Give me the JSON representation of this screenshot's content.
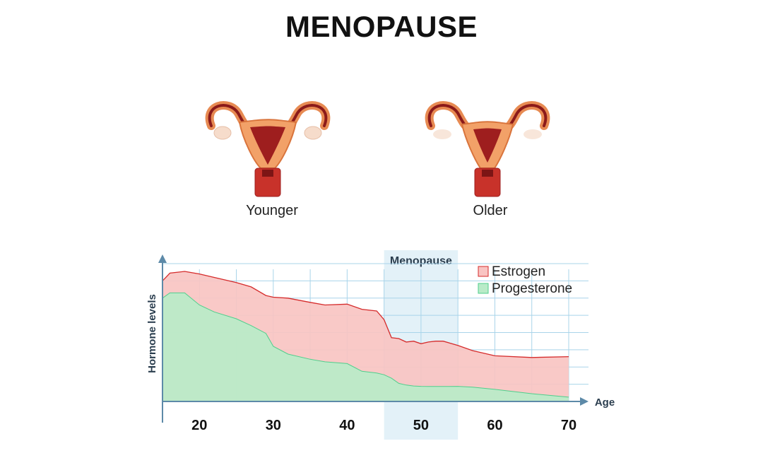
{
  "title": "MENOPAUSE",
  "illustrations": {
    "younger_label": "Younger",
    "older_label": "Older"
  },
  "colors": {
    "estrogen_fill": "#f9c4c2",
    "estrogen_line": "#d52b2b",
    "progesterone_fill": "#b9ebc8",
    "progesterone_line": "#4fcf8c",
    "grid": "#a9d4ea",
    "axis": "#5d8aa8",
    "menopause_band": "#e3f1f8"
  },
  "chart_data": {
    "type": "area",
    "xlabel": "Age",
    "ylabel": "Hormone levels",
    "x_ticks": [
      20,
      30,
      40,
      50,
      60,
      70
    ],
    "xlim": [
      15,
      72
    ],
    "ylim": [
      0,
      8
    ],
    "grid": true,
    "legend_position": "top-right",
    "menopause_band": {
      "label": "Menopause",
      "from": 45,
      "to": 55
    },
    "series": [
      {
        "name": "Estrogen",
        "x": [
          15,
          16,
          18,
          20,
          22,
          25,
          27,
          29,
          30,
          32,
          35,
          37,
          40,
          42,
          44,
          45,
          46,
          47,
          48,
          49,
          50,
          51,
          52,
          53,
          55,
          57,
          60,
          65,
          70
        ],
        "y": [
          7.0,
          7.45,
          7.55,
          7.4,
          7.2,
          6.9,
          6.65,
          6.15,
          6.05,
          6.0,
          5.75,
          5.6,
          5.65,
          5.35,
          5.25,
          4.75,
          3.7,
          3.65,
          3.45,
          3.5,
          3.35,
          3.45,
          3.5,
          3.5,
          3.25,
          2.95,
          2.65,
          2.55,
          2.6
        ]
      },
      {
        "name": "Progesterone",
        "x": [
          15,
          16,
          18,
          20,
          22,
          25,
          27,
          29,
          30,
          32,
          35,
          37,
          40,
          42,
          44,
          45,
          46,
          47,
          48,
          49,
          50,
          51,
          52,
          53,
          55,
          57,
          60,
          65,
          70
        ],
        "y": [
          6.0,
          6.3,
          6.3,
          5.6,
          5.2,
          4.8,
          4.4,
          3.95,
          3.2,
          2.75,
          2.45,
          2.3,
          2.2,
          1.75,
          1.65,
          1.55,
          1.35,
          1.05,
          0.95,
          0.9,
          0.88,
          0.87,
          0.87,
          0.87,
          0.88,
          0.83,
          0.7,
          0.45,
          0.25
        ]
      }
    ]
  }
}
